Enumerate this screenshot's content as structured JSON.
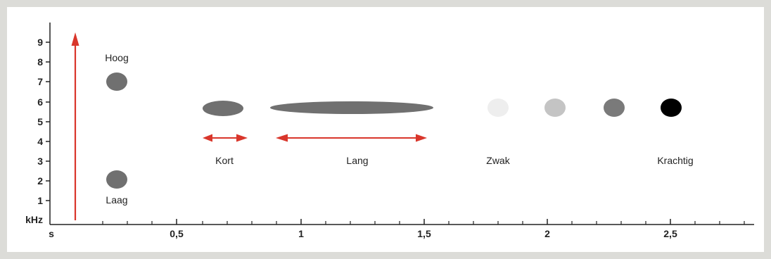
{
  "colors": {
    "frame": "#dcdcd8",
    "background": "#ffffff",
    "axis": "#222222",
    "arrow": "#d9362b",
    "tone": "#707070",
    "tone_weak": "#eeeeee",
    "tone_light": "#c4c4c4",
    "tone_medium": "#7a7a7a",
    "tone_strong": "#000000"
  },
  "y_axis": {
    "unit": "kHz",
    "ticks": [
      "1",
      "2",
      "3",
      "4",
      "5",
      "6",
      "7",
      "8",
      "9"
    ]
  },
  "x_axis": {
    "unit": "s",
    "ticks": [
      "0,5",
      "1",
      "1,5",
      "2",
      "2,5"
    ]
  },
  "labels": {
    "high": "Hoog",
    "low": "Laag",
    "short": "Kort",
    "long": "Lang",
    "weak": "Zwak",
    "strong": "Krachtig"
  }
}
